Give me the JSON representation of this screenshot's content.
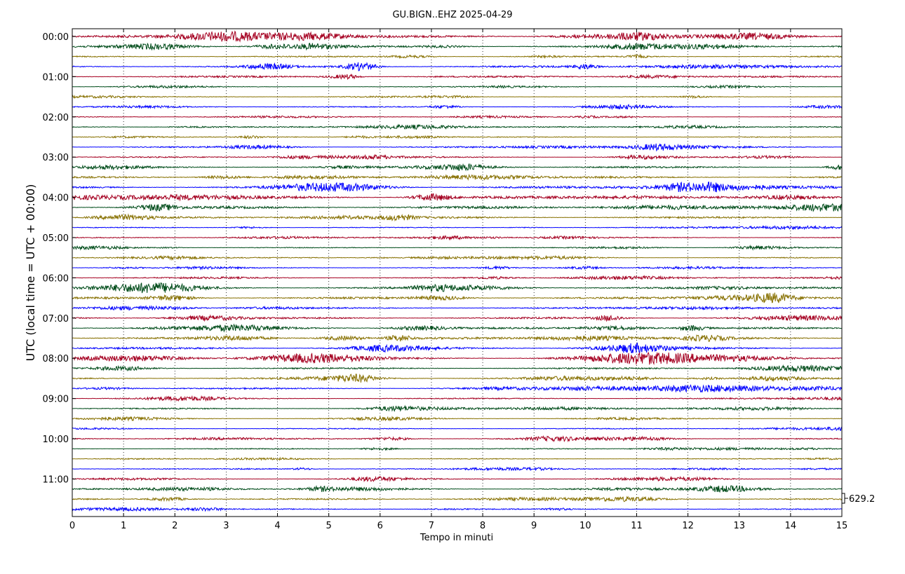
{
  "chart_data": {
    "type": "line",
    "title": "GU.BIGN..EHZ 2025-04-29",
    "xlabel": "Tempo in minuti",
    "ylabel": "UTC (local time = UTC + 00:00)",
    "xlim": [
      0,
      15
    ],
    "x_ticks": [
      "0",
      "1",
      "2",
      "3",
      "4",
      "5",
      "6",
      "7",
      "8",
      "9",
      "10",
      "11",
      "12",
      "13",
      "14",
      "15"
    ],
    "y_ticks": [
      "00:00",
      "01:00",
      "02:00",
      "03:00",
      "04:00",
      "05:00",
      "06:00",
      "07:00",
      "08:00",
      "09:00",
      "10:00",
      "11:00"
    ],
    "grid_vertical": true,
    "trace_interval_minutes": 15,
    "traces_count": 48,
    "trace_colors": [
      "#a50021",
      "#004c1a",
      "#877000",
      "#0000ff"
    ],
    "trace_amplitudes": [
      0.9,
      0.7,
      0.5,
      0.7,
      0.7,
      0.3,
      0.3,
      0.4,
      0.3,
      0.4,
      0.35,
      0.5,
      0.45,
      0.7,
      0.7,
      0.9,
      1.0,
      1.0,
      0.7,
      0.3,
      0.35,
      0.3,
      0.35,
      0.4,
      0.35,
      0.6,
      0.75,
      0.6,
      0.7,
      0.7,
      0.8,
      0.8,
      0.7,
      0.6,
      0.6,
      0.6,
      0.45,
      0.5,
      0.4,
      0.35,
      0.4,
      0.35,
      0.3,
      0.3,
      0.4,
      0.5,
      0.55,
      0.4
    ],
    "scale_label": "629.2"
  }
}
